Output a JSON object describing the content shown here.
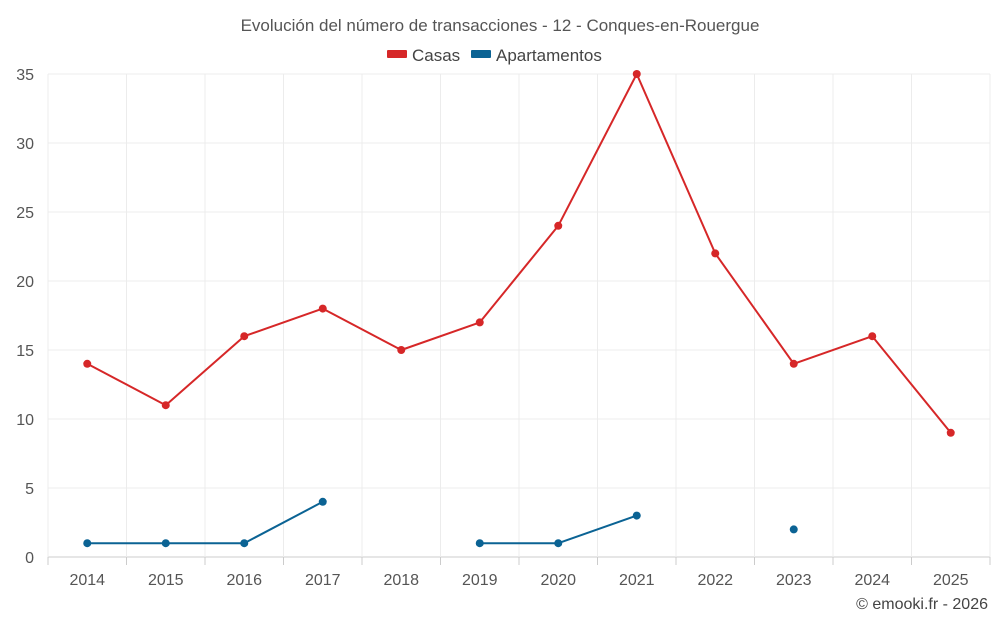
{
  "chart_data": {
    "type": "line",
    "title": "Evolución del número de transacciones - 12 - Conques-en-Rouergue",
    "categories": [
      "2014",
      "2015",
      "2016",
      "2017",
      "2018",
      "2019",
      "2020",
      "2021",
      "2022",
      "2023",
      "2024",
      "2025"
    ],
    "series": [
      {
        "name": "Casas",
        "color": "#d62728",
        "values": [
          14,
          11,
          16,
          18,
          15,
          17,
          24,
          35,
          22,
          14,
          16,
          9
        ]
      },
      {
        "name": "Apartamentos",
        "color": "#0b6394",
        "values": [
          1,
          1,
          1,
          4,
          null,
          1,
          1,
          3,
          null,
          2,
          null,
          null
        ]
      }
    ],
    "ylim": [
      0,
      35
    ],
    "yticks": [
      "0",
      "5",
      "10",
      "15",
      "20",
      "25",
      "30",
      "35"
    ],
    "xlabel": "",
    "ylabel": "",
    "grid": true,
    "legend_position": "top-center"
  },
  "credit": "© emooki.fr - 2026"
}
